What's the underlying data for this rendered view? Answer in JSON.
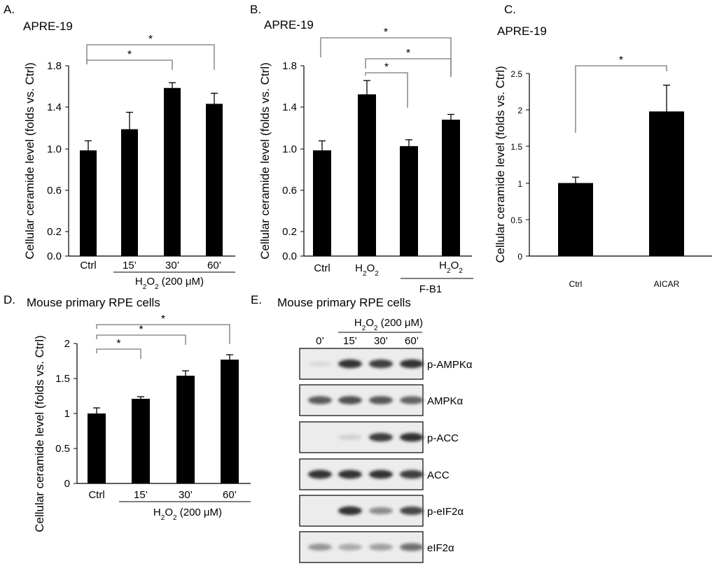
{
  "figure": {
    "panels": [
      {
        "label": "A.",
        "title": "APRE-19"
      },
      {
        "label": "B.",
        "title": "APRE-19"
      },
      {
        "label": "C.",
        "title": "APRE-19"
      },
      {
        "label": "D.",
        "title": "Mouse primary RPE cells"
      },
      {
        "label": "E.",
        "title": "Mouse primary RPE cells"
      }
    ],
    "group_labels": {
      "a_treatment": "H2O2 (200 μM)",
      "b_inhibitor": "F-B1",
      "d_treatment": "H2O2 (200 μM)",
      "e_treatment": "H2O2 (200 μM)"
    },
    "e_lanes": [
      "0’",
      "15’",
      "30’",
      "60’"
    ],
    "e_blots": [
      {
        "name": "p-AMPKα",
        "intensities": [
          0.05,
          0.9,
          0.85,
          0.9
        ]
      },
      {
        "name": "AMPKα",
        "intensities": [
          0.7,
          0.75,
          0.72,
          0.65
        ]
      },
      {
        "name": "p-ACC",
        "intensities": [
          0.0,
          0.1,
          0.85,
          0.9
        ]
      },
      {
        "name": "ACC",
        "intensities": [
          0.9,
          0.9,
          0.9,
          0.85
        ]
      },
      {
        "name": "p-eIF2α",
        "intensities": [
          0.0,
          0.9,
          0.45,
          0.8
        ]
      },
      {
        "name": "eIF2α",
        "intensities": [
          0.4,
          0.3,
          0.35,
          0.6
        ]
      }
    ]
  },
  "chart_data": [
    {
      "type": "bar",
      "panel": "A.",
      "title": "APRE-19",
      "ylabel": "Cellular ceramide level (folds vs. Ctrl)",
      "categories": [
        "Ctrl",
        "15’",
        "30’",
        "60’"
      ],
      "values": [
        1.0,
        1.2,
        1.59,
        1.44
      ],
      "errors": [
        0.09,
        0.16,
        0.05,
        0.1
      ],
      "ylim": [
        0,
        1.8
      ],
      "yticks": [
        "0.0",
        "0.2",
        "0.6",
        "1.0",
        "1.4",
        "1.8"
      ],
      "significance": [
        {
          "from": "Ctrl",
          "to": "30’",
          "label": "*"
        },
        {
          "from": "Ctrl",
          "to": "60’",
          "label": "*"
        }
      ],
      "group_label": "H2O2 (200 μM)",
      "color": "#000000"
    },
    {
      "type": "bar",
      "panel": "B.",
      "title": "APRE-19",
      "ylabel": "Cellular ceramide level (folds vs. Ctrl)",
      "categories": [
        "Ctrl",
        "H2O2",
        "",
        "H2O2"
      ],
      "values": [
        1.0,
        1.53,
        1.04,
        1.29
      ],
      "errors": [
        0.09,
        0.13,
        0.06,
        0.05
      ],
      "ylim": [
        0,
        1.8
      ],
      "yticks": [
        "0.0",
        "0.2",
        "0.6",
        "1.0",
        "1.4",
        "1.8"
      ],
      "significance": [
        {
          "from": "H2O2",
          "to": "",
          "label": "*"
        },
        {
          "from": "H2O2",
          "to": "H2O2 + F-B1",
          "label": "*"
        },
        {
          "from": "Ctrl",
          "to": "H2O2 + F-B1",
          "label": "*"
        }
      ],
      "group_label": "F-B1",
      "color": "#000000"
    },
    {
      "type": "bar",
      "panel": "C.",
      "title": "APRE-19",
      "ylabel": "Cellular ceramide level (folds vs. Ctrl)",
      "categories": [
        "Ctrl",
        "AICAR"
      ],
      "values": [
        1.0,
        1.98
      ],
      "errors": [
        0.08,
        0.36
      ],
      "ylim": [
        0,
        2.5
      ],
      "yticks": [
        "0",
        "0.5",
        "1",
        "1.5",
        "2",
        "2.5"
      ],
      "significance": [
        {
          "from": "Ctrl",
          "to": "AICAR",
          "label": "*"
        }
      ],
      "color": "#000000"
    },
    {
      "type": "bar",
      "panel": "D.",
      "title": "Mouse primary RPE cells",
      "ylabel": "Cellular ceramide level (folds vs. Ctrl)",
      "categories": [
        "Ctrl",
        "15’",
        "30’",
        "60’"
      ],
      "values": [
        1.0,
        1.21,
        1.54,
        1.77
      ],
      "errors": [
        0.08,
        0.03,
        0.07,
        0.07
      ],
      "ylim": [
        0,
        2
      ],
      "yticks": [
        "0",
        "0.5",
        "1",
        "1.5",
        "2"
      ],
      "significance": [
        {
          "from": "Ctrl",
          "to": "15’",
          "label": "*"
        },
        {
          "from": "Ctrl",
          "to": "30’",
          "label": "*"
        },
        {
          "from": "Ctrl",
          "to": "60’",
          "label": "*"
        }
      ],
      "group_label": "H2O2 (200 μM)",
      "color": "#000000"
    }
  ]
}
